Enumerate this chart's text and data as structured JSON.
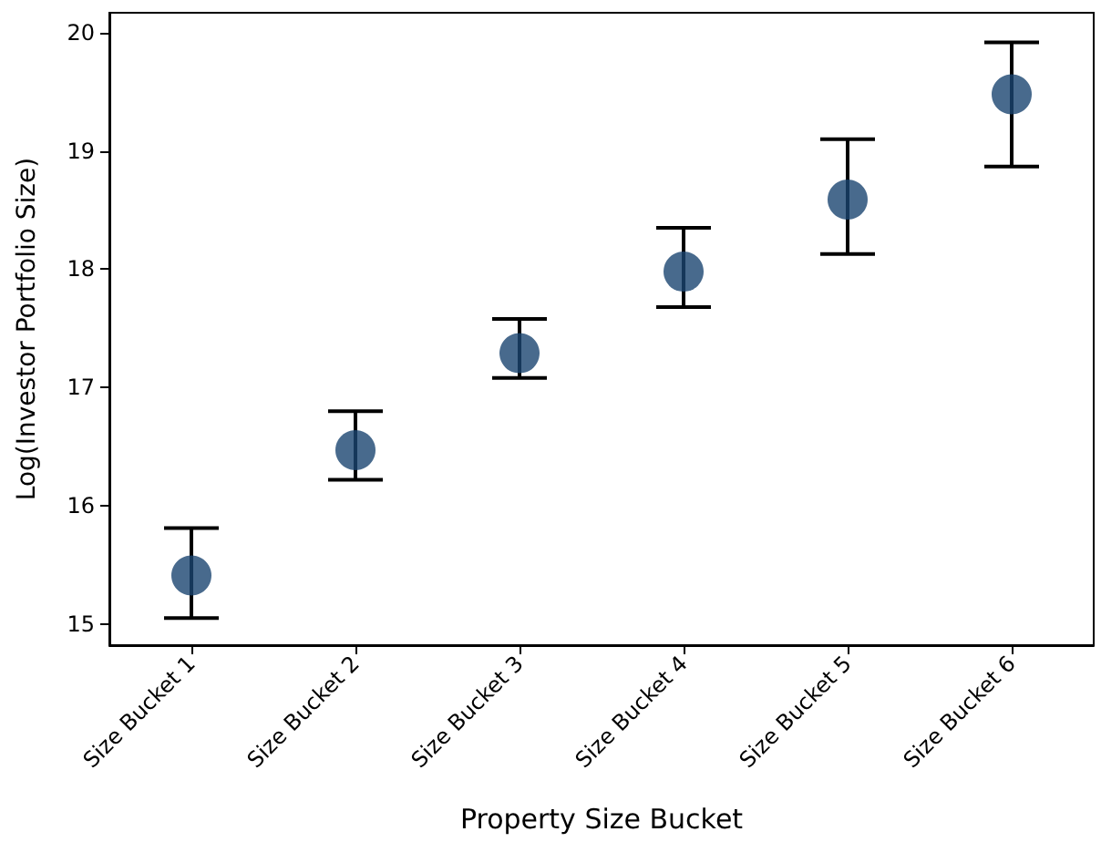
{
  "chart_data": {
    "type": "scatter",
    "xlabel": "Property Size Bucket",
    "ylabel": "Log(Investor Portfolio Size)",
    "categories": [
      "Size Bucket 1",
      "Size Bucket 2",
      "Size Bucket 3",
      "Size Bucket 4",
      "Size Bucket 5",
      "Size Bucket 6"
    ],
    "values": [
      15.41,
      16.47,
      17.29,
      17.98,
      18.59,
      19.48
    ],
    "errors": [
      [
        15.05,
        15.81
      ],
      [
        16.22,
        16.8
      ],
      [
        17.08,
        17.58
      ],
      [
        17.68,
        18.35
      ],
      [
        18.13,
        19.1
      ],
      [
        18.87,
        19.92
      ]
    ],
    "color": "#1a4570",
    "marker": "circle",
    "ylim": [
      14.82,
      20.17
    ],
    "yticks": [
      15,
      16,
      17,
      18,
      19,
      20
    ]
  }
}
